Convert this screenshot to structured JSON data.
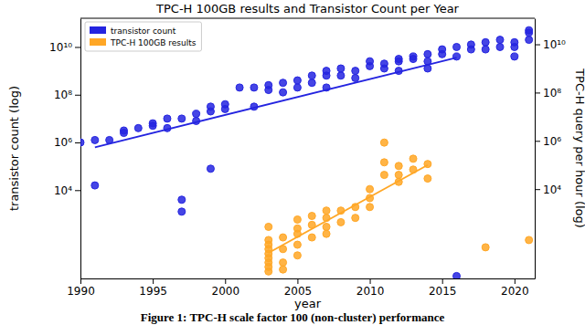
{
  "chart_data": {
    "type": "scatter",
    "title": "TPC-H 100GB results and Transistor Count per Year",
    "x_label": "year",
    "y_label": "transistor count (log)",
    "y2_label": "TPC-H query per hour (log)",
    "annotations": [
      "Figure 1: TPC-H scale factor 100 (non-cluster) performance"
    ],
    "log": "y",
    "grid": false,
    "legend": "upper left",
    "xlim": [
      1990,
      2021.4
    ],
    "xticks": [
      1990,
      1995,
      2000,
      2005,
      2010,
      2015,
      2020
    ],
    "ylim": [
      2,
      160000000000.0
    ],
    "yticks": [
      {
        "value": 10000,
        "label": "10⁴"
      },
      {
        "value": 1000000,
        "label": "10⁶"
      },
      {
        "value": 100000000,
        "label": "10⁸"
      },
      {
        "value": 10000000000,
        "label": "10¹⁰"
      }
    ],
    "y2lim": [
      2,
      120000000000.0
    ],
    "y2ticks": [
      {
        "value": 10000,
        "label": "10⁴"
      },
      {
        "value": 1000000,
        "label": "10⁶"
      },
      {
        "value": 100000000,
        "label": "10⁸"
      },
      {
        "value": 10000000000,
        "label": "10¹⁰"
      }
    ],
    "series": [
      {
        "name": "transistor count",
        "type": "scatter",
        "color": "#2424e0",
        "marker": "circle",
        "x": [
          1990,
          1991,
          1991,
          1992,
          1993,
          1993,
          1994,
          1995,
          1995,
          1996,
          1996,
          1997,
          1997,
          1997,
          1998,
          1998,
          1999,
          1999,
          1999,
          2000,
          2000,
          2001,
          2002,
          2002,
          2003,
          2003,
          2004,
          2004,
          2005,
          2005,
          2006,
          2006,
          2007,
          2007,
          2007,
          2008,
          2008,
          2009,
          2009,
          2010,
          2010,
          2011,
          2011,
          2012,
          2012,
          2012,
          2013,
          2013,
          2014,
          2014,
          2014,
          2015,
          2015,
          2016,
          2016,
          2016,
          2017,
          2017,
          2018,
          2018,
          2019,
          2019,
          2020,
          2020,
          2020,
          2021,
          2021,
          2021
        ],
        "values": [
          1000000.0,
          1260000.0,
          15800.0,
          1260000.0,
          3160000.0,
          2510000.0,
          3980000.0,
          6310000.0,
          5010000.0,
          3980000.0,
          10000000.0,
          10000000.0,
          3980,
          1260,
          7940000.0,
          15800000.0,
          20000000.0,
          31600000.0,
          79400.0,
          25100000.0,
          39800000.0,
          200000000.0,
          31600000.0,
          200000000.0,
          251000000.0,
          158000000.0,
          126000000.0,
          316000000.0,
          200000000.0,
          398000000.0,
          316000000.0,
          631000000.0,
          200000000.0,
          631000000.0,
          1000000000.0,
          631000000.0,
          1260000000.0,
          501000000.0,
          1000000000.0,
          1580000000.0,
          2510000000.0,
          1260000000.0,
          2000000000.0,
          2510000000.0,
          3160000000.0,
          1000000000.0,
          3980000000.0,
          3160000000.0,
          5010000000.0,
          2510000000.0,
          1260000000.0,
          5010000000.0,
          7940000000.0,
          3980000000.0,
          10000000000.0,
          2.51,
          7940000000.0,
          12600000000.0,
          7940000000.0,
          15800000000.0,
          20000000000.0,
          10000000000.0,
          3980000000.0,
          10000000000.0,
          15800000000.0,
          20000000000.0,
          39800000000.0,
          50100000000.0
        ]
      },
      {
        "type": "line",
        "color": "#2424e0",
        "line_style": "solid",
        "x": [
          1991,
          2016
        ],
        "values": [
          630000.0,
          3600000000.0
        ]
      },
      {
        "name": "TPC-H 100GB results",
        "type": "scatter",
        "axis": "y2",
        "color": "#ffa726",
        "marker": "circle",
        "x": [
          2003,
          2003,
          2003,
          2003,
          2003,
          2003,
          2003,
          2003,
          2003,
          2004,
          2004,
          2004,
          2004,
          2005,
          2005,
          2005,
          2005,
          2005,
          2006,
          2006,
          2006,
          2007,
          2007,
          2007,
          2007,
          2008,
          2008,
          2009,
          2009,
          2010,
          2010,
          2010,
          2011,
          2011,
          2011,
          2012,
          2012,
          2012,
          2013,
          2013,
          2014,
          2014,
          2018,
          2021
        ],
        "values": [
          78,
          50,
          33,
          21,
          14,
          9.1,
          6,
          3.9,
          275,
          100,
          33,
          9.1,
          4.7,
          550,
          234,
          141,
          50,
          18,
          776,
          331,
          100,
          1290,
          646,
          275,
          141,
          1290,
          427,
          1820,
          646,
          10000,
          4270,
          1820,
          851000,
          129000,
          38900,
          91200,
          38900,
          20000,
          182000,
          64600,
          110000,
          27500,
          39,
          78
        ]
      },
      {
        "type": "line",
        "axis": "y2",
        "color": "#ffa726",
        "line_style": "solid",
        "x": [
          2003,
          2014
        ],
        "values": [
          23,
          100000
        ]
      }
    ]
  }
}
